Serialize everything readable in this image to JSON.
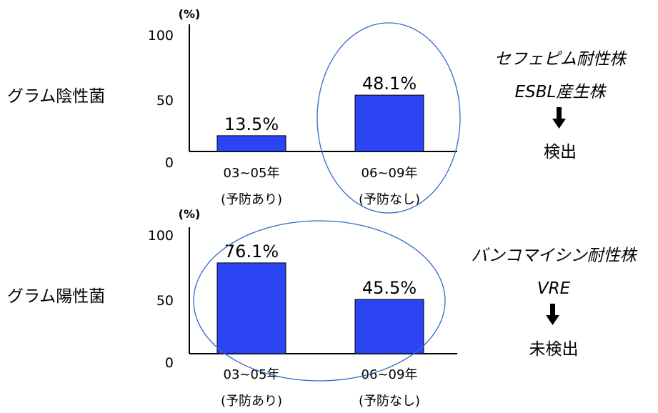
{
  "colors": {
    "bar": "#2b45f5",
    "bar_outline": "#000000",
    "ellipse": "#3366cc",
    "axis": "#000000"
  },
  "chart_data": [
    {
      "type": "bar",
      "group_label": "グラム陰性菌",
      "unit_label": "(%)",
      "ylim": [
        0,
        100
      ],
      "yticks": [
        "0",
        "50",
        "100"
      ],
      "categories": [
        {
          "line1": "03~05年",
          "line2": "(予防あり)"
        },
        {
          "line1": "06~09年",
          "line2": "(予防なし)"
        }
      ],
      "values": [
        13.5,
        48.1
      ],
      "data_labels": [
        "13.5%",
        "48.1%"
      ],
      "highlight": "06~09年",
      "annotation": {
        "line1": "セフェピム耐性株",
        "line2": "ESBL産生株",
        "arrow": "down-arrow-icon",
        "result": "検出"
      }
    },
    {
      "type": "bar",
      "group_label": "グラム陽性菌",
      "unit_label": "(%)",
      "ylim": [
        0,
        100
      ],
      "yticks": [
        "0",
        "50",
        "100"
      ],
      "categories": [
        {
          "line1": "03~05年",
          "line2": "(予防あり)"
        },
        {
          "line1": "06~09年",
          "line2": "(予防なし)"
        }
      ],
      "values": [
        76.1,
        45.5
      ],
      "data_labels": [
        "76.1%",
        "45.5%"
      ],
      "highlight": "all",
      "annotation": {
        "line1": "バンコマイシン耐性株",
        "line2": "VRE",
        "arrow": "down-arrow-icon",
        "result": "未検出"
      }
    }
  ]
}
